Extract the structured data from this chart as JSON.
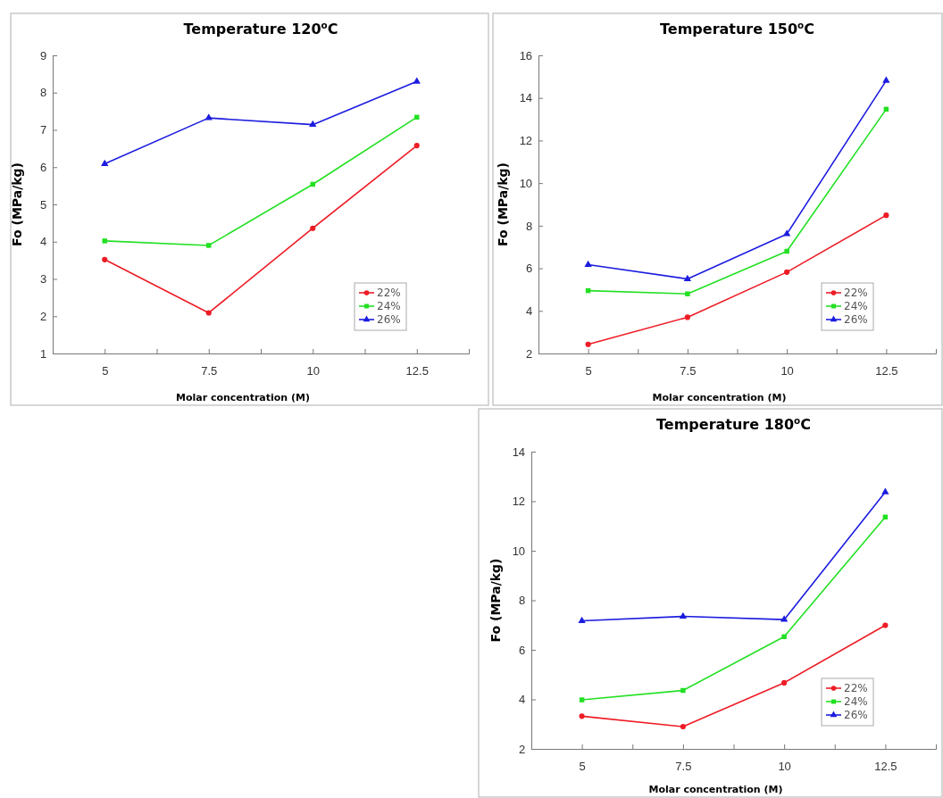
{
  "chart_data": [
    {
      "type": "line",
      "title": "Temperature 120$^{o}$C",
      "xlabel": "Molar concentration (M)",
      "ylabel": "Fo (MPa/kg)",
      "x": [
        5,
        7.5,
        10,
        12.5
      ],
      "xlim": [
        3.75,
        13.75
      ],
      "xticks": [
        5,
        {
          "value": 6.25,
          "label": null
        },
        7.5,
        {
          "value": 8.75,
          "label": null
        },
        10,
        {
          "value": 11.25,
          "label": null
        },
        12.5
      ],
      "ylim": [
        1,
        9
      ],
      "yticks": [
        1,
        2,
        3,
        4,
        5,
        6,
        7,
        8,
        9
      ],
      "legend": "bottom right",
      "grid": false,
      "series": [
        {
          "name": "22%",
          "color": "#ee1c25",
          "marker": "circle",
          "values": [
            3.52,
            2.09,
            4.36,
            6.58
          ]
        },
        {
          "name": "24%",
          "color": "#22e022",
          "marker": "square",
          "values": [
            4.02,
            3.9,
            5.54,
            7.34
          ]
        },
        {
          "name": "26%",
          "color": "#1c1ce0",
          "marker": "triangle",
          "values": [
            6.09,
            7.32,
            7.14,
            8.3
          ]
        }
      ]
    },
    {
      "type": "line",
      "title": "Temperature 150$^{o}$C",
      "xlabel": "Molar concentration (M)",
      "ylabel": "Fo (MPa/kg)",
      "x": [
        5,
        7.5,
        10,
        12.5
      ],
      "xlim": [
        3.75,
        13.75
      ],
      "xticks": [
        5,
        {
          "value": 6.25,
          "label": null
        },
        7.5,
        {
          "value": 8.75,
          "label": null
        },
        10,
        {
          "value": 11.25,
          "label": null
        },
        12.5
      ],
      "ylim": [
        2,
        16
      ],
      "yticks": [
        2,
        4,
        6,
        8,
        10,
        12,
        14,
        16
      ],
      "legend": "bottom right",
      "grid": false,
      "series": [
        {
          "name": "22%",
          "color": "#ee1c25",
          "marker": "circle",
          "values": [
            2.43,
            3.7,
            5.82,
            8.49
          ]
        },
        {
          "name": "24%",
          "color": "#22e022",
          "marker": "square",
          "values": [
            4.95,
            4.8,
            6.8,
            13.47
          ]
        },
        {
          "name": "26%",
          "color": "#1c1ce0",
          "marker": "triangle",
          "values": [
            6.17,
            5.5,
            7.61,
            14.81
          ]
        }
      ]
    },
    {
      "type": "line",
      "title": "Temperature 180$^{o}$C",
      "xlabel": "Molar concentration (M)",
      "ylabel": "Fo (MPa/kg)",
      "x": [
        5,
        7.5,
        10,
        12.5
      ],
      "xlim": [
        3.75,
        13.75
      ],
      "xticks": [
        5,
        {
          "value": 6.25,
          "label": null
        },
        7.5,
        {
          "value": 8.75,
          "label": null
        },
        10,
        {
          "value": 11.25,
          "label": null
        },
        12.5
      ],
      "ylim": [
        2,
        14
      ],
      "yticks": [
        2,
        4,
        6,
        8,
        10,
        12,
        14
      ],
      "legend": "bottom right",
      "grid": false,
      "series": [
        {
          "name": "22%",
          "color": "#ee1c25",
          "marker": "circle",
          "values": [
            3.32,
            2.9,
            4.67,
            6.99
          ]
        },
        {
          "name": "24%",
          "color": "#22e022",
          "marker": "square",
          "values": [
            3.98,
            4.36,
            6.53,
            11.36
          ]
        },
        {
          "name": "26%",
          "color": "#1c1ce0",
          "marker": "triangle",
          "values": [
            7.17,
            7.35,
            7.22,
            12.37
          ]
        }
      ]
    }
  ]
}
